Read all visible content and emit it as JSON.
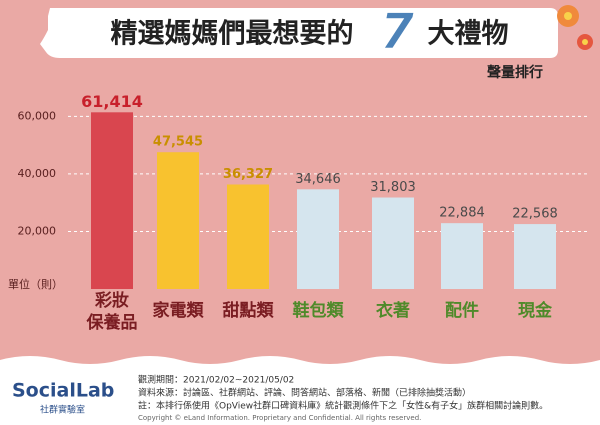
{
  "chart_data": {
    "type": "bar",
    "title": "精選媽媽們最想要的",
    "title_number": "7",
    "title_suffix": "大禮物",
    "subtitle": "聲量排行",
    "y_label": "單位（則）",
    "categories": [
      "彩妝\n保養品",
      "家電類",
      "甜點類",
      "鞋包類",
      "衣著",
      "配件",
      "現金"
    ],
    "values": [
      61414,
      47545,
      36327,
      34646,
      31803,
      22884,
      22568
    ],
    "value_labels": [
      "61,414",
      "47,545",
      "36,327",
      "34,646",
      "31,803",
      "22,884",
      "22,568"
    ],
    "colors": [
      "#d9464f",
      "#f8c22f",
      "#f8c22f",
      "#d5e5ee",
      "#d5e5ee",
      "#d5e5ee",
      "#d5e5ee"
    ],
    "value_label_colors": [
      "#c8202b",
      "#c98f00",
      "#c98f00",
      "#4a4a4a",
      "#4a4a4a",
      "#4a4a4a",
      "#4a4a4a"
    ],
    "category_colors": [
      "#7a1d22",
      "#7a1d22",
      "#7a1d22",
      "#4f8a2a",
      "#4f8a2a",
      "#4f8a2a",
      "#4f8a2a"
    ],
    "ylim": [
      0,
      65000
    ],
    "yticks": [
      {
        "value": 20000,
        "label": "20,000"
      },
      {
        "value": 40000,
        "label": "40,000"
      },
      {
        "value": 60000,
        "label": "60,000"
      }
    ],
    "grid": true
  },
  "footer": {
    "logo": "SocialLab",
    "logo_sub": "社群實驗室",
    "notes": [
      "觀測期間：2021/02/02~2021/05/02",
      "資料來源：討論區、社群網站、評論、問答網站、部落格、新聞（已排除抽獎活動）",
      "註：本排行係使用《OpView社群口碑資料庫》統計觀測條件下之「女性&有子女」族群相關討論則數。"
    ],
    "copyright": "Copyright © eLand Information. Proprietary and Confidential. All rights reserved."
  }
}
